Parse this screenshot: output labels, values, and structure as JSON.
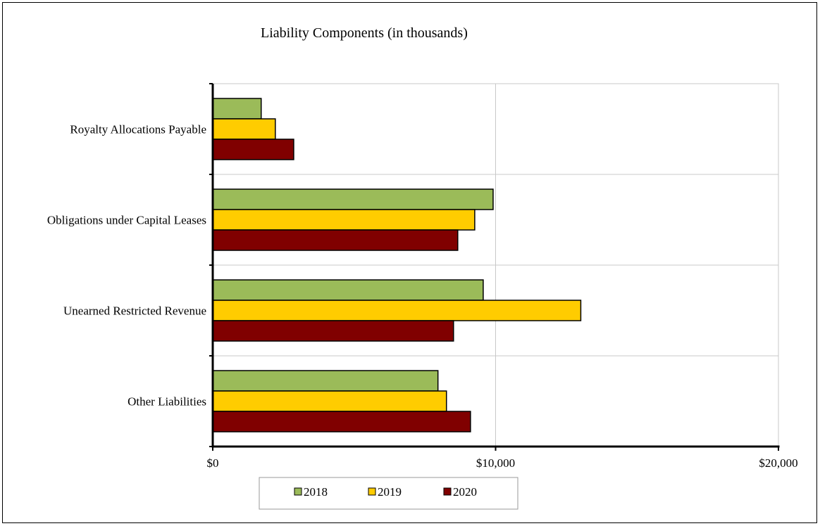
{
  "chart_data": {
    "type": "bar",
    "orientation": "horizontal",
    "title": "Liability Components (in thousands)",
    "categories": [
      "Royalty Allocations Payable",
      "Obligations under Capital Leases",
      "Unearned Restricted Revenue",
      "Other Liabilities"
    ],
    "series": [
      {
        "name": "2018",
        "color": "#9bbb59",
        "values": [
          1700,
          9900,
          9550,
          7950
        ]
      },
      {
        "name": "2019",
        "color": "#ffcc00",
        "values": [
          2200,
          9250,
          13000,
          8250
        ]
      },
      {
        "name": "2020",
        "color": "#800000",
        "values": [
          2850,
          8650,
          8500,
          9100
        ]
      }
    ],
    "xlim": [
      0,
      20000
    ],
    "x_ticks": [
      {
        "value": 0,
        "label": "$0"
      },
      {
        "value": 10000,
        "label": "$10,000"
      },
      {
        "value": 20000,
        "label": "$20,000"
      }
    ],
    "xlabel": "",
    "ylabel": "",
    "grid": true,
    "legend_position": "bottom"
  }
}
